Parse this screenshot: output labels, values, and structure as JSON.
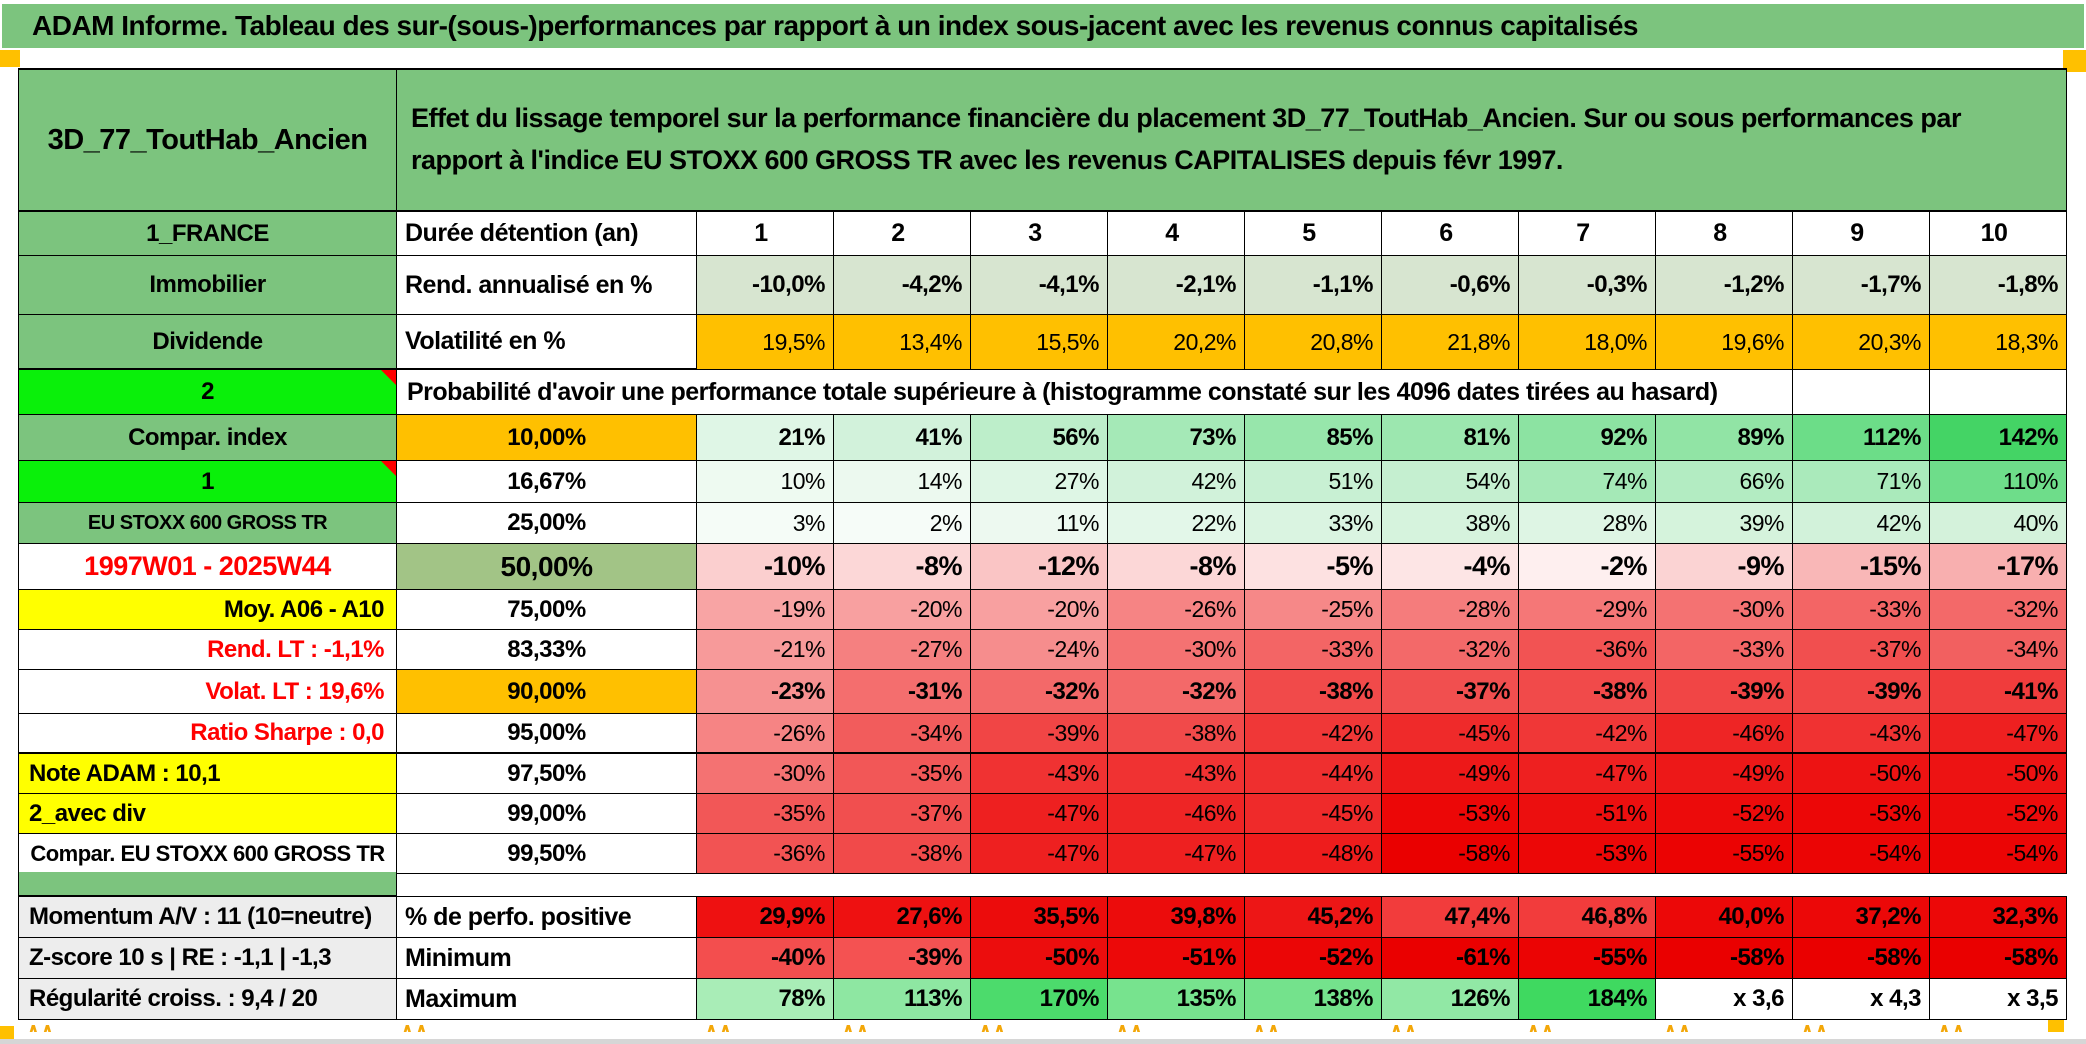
{
  "title": "ADAM Informe. Tableau des sur-(sous-)performances par rapport à un index sous-jacent avec les revenus connus capitalisés",
  "header": {
    "name": "3D_77_ToutHab_Ancien",
    "description": "Effet du lissage temporel sur la performance financière du placement 3D_77_ToutHab_Ancien. Sur ou sous performances par rapport à l'indice EU STOXX 600 GROSS TR avec les revenus CAPITALISES depuis févr 1997."
  },
  "colors": {
    "green_header": "#7cc47e",
    "bright_green": "#0af00a",
    "orange": "#ffc000",
    "yellow": "#ffff00",
    "sage": "#a2c486",
    "grey_label": "#ededed",
    "red_text": "#ff0000"
  },
  "duration_row": {
    "label_a": "1_FRANCE",
    "label_b": "Durée détention (an)",
    "values": [
      "1",
      "2",
      "3",
      "4",
      "5",
      "6",
      "7",
      "8",
      "9",
      "10"
    ]
  },
  "rend_row": {
    "label_a": "Immobilier",
    "label_b": "Rend. annualisé en %",
    "values": [
      "-10,0%",
      "-4,2%",
      "-4,1%",
      "-2,1%",
      "-1,1%",
      "-0,6%",
      "-0,3%",
      "-1,2%",
      "-1,7%",
      "-1,8%"
    ],
    "cell_colors": [
      "#d7e5d0",
      "#d7e5d0",
      "#d7e5d0",
      "#d7e5d0",
      "#d7e5d0",
      "#d7e5d0",
      "#d7e5d0",
      "#d7e5d0",
      "#d7e5d0",
      "#d7e5d0"
    ]
  },
  "volat_row": {
    "label_a": "Dividende",
    "label_b": "Volatilité en %",
    "values": [
      "19,5%",
      "13,4%",
      "15,5%",
      "20,2%",
      "20,8%",
      "21,8%",
      "18,0%",
      "19,6%",
      "20,3%",
      "18,3%"
    ],
    "cell_colors": [
      "#ffc000",
      "#ffc000",
      "#ffc000",
      "#ffc000",
      "#ffc000",
      "#ffc000",
      "#ffc000",
      "#ffc000",
      "#ffc000",
      "#ffc000"
    ]
  },
  "prob_header": {
    "label_a": "2",
    "text": "Probabilité d'avoir une performance totale supérieure à (histogramme constaté sur les 4096 dates tirées au hasard)"
  },
  "prob_rows": [
    {
      "label_a": "Compar. index",
      "pct": "10,00%",
      "values": [
        "21%",
        "41%",
        "56%",
        "73%",
        "85%",
        "81%",
        "92%",
        "89%",
        "112%",
        "142%"
      ],
      "cell_colors": [
        "#dff6e6",
        "#d2f2db",
        "#bdeeca",
        "#a5e9b7",
        "#97e6ab",
        "#9ce7af",
        "#8ce3a2",
        "#91e4a5",
        "#6cdd88",
        "#44d465"
      ]
    },
    {
      "label_a": "1",
      "pct": "16,67%",
      "values": [
        "10%",
        "14%",
        "27%",
        "42%",
        "51%",
        "54%",
        "74%",
        "66%",
        "71%",
        "110%"
      ],
      "cell_colors": [
        "#eefaf1",
        "#ecf9ef",
        "#def6e5",
        "#d1f2da",
        "#c8f0d3",
        "#c5efd0",
        "#a5e9b7",
        "#b3ecc2",
        "#aaeabb",
        "#6edd8a"
      ]
    },
    {
      "label_a": "EU STOXX 600 GROSS TR",
      "pct": "25,00%",
      "values": [
        "3%",
        "2%",
        "11%",
        "22%",
        "33%",
        "38%",
        "28%",
        "39%",
        "42%",
        "40%"
      ],
      "cell_colors": [
        "#f5fcf7",
        "#f6fcf8",
        "#edf9f0",
        "#e3f7e9",
        "#daf4e1",
        "#d6f3dd",
        "#def5e4",
        "#d5f3dc",
        "#d2f2da",
        "#d4f2db"
      ]
    },
    {
      "label_a": "1997W01 - 2025W44",
      "pct": "50,00%",
      "values": [
        "-10%",
        "-8%",
        "-12%",
        "-8%",
        "-5%",
        "-4%",
        "-2%",
        "-9%",
        "-15%",
        "-17%"
      ],
      "cell_colors": [
        "#fbcfcf",
        "#fcd7d7",
        "#fac5c5",
        "#fcd7d7",
        "#fde1e1",
        "#fde5e5",
        "#feefef",
        "#fbd3d3",
        "#f9b7b7",
        "#f8afaf"
      ]
    },
    {
      "label_a": "Moy. A06 - A10",
      "pct": "75,00%",
      "values": [
        "-19%",
        "-20%",
        "-20%",
        "-26%",
        "-25%",
        "-28%",
        "-29%",
        "-30%",
        "-33%",
        "-32%"
      ],
      "cell_colors": [
        "#f8a4a4",
        "#f8a0a0",
        "#f8a0a0",
        "#f68484",
        "#f68888",
        "#f57c7c",
        "#f57777",
        "#f47272",
        "#f36565",
        "#f36969"
      ]
    },
    {
      "label_a": "Rend. LT :   -1,1%",
      "pct": "83,33%",
      "values": [
        "-21%",
        "-27%",
        "-24%",
        "-30%",
        "-33%",
        "-32%",
        "-36%",
        "-33%",
        "-37%",
        "-34%"
      ],
      "cell_colors": [
        "#f79a9a",
        "#f58080",
        "#f68d8d",
        "#f47272",
        "#f36565",
        "#f36969",
        "#f25353",
        "#f36565",
        "#f14f4f",
        "#f26060"
      ]
    },
    {
      "label_a": "Volat. LT :   19,6%",
      "pct": "90,00%",
      "values": [
        "-23%",
        "-31%",
        "-32%",
        "-32%",
        "-38%",
        "-37%",
        "-38%",
        "-39%",
        "-39%",
        "-41%"
      ],
      "cell_colors": [
        "#f69191",
        "#f46e6e",
        "#f36969",
        "#f36969",
        "#f14a4a",
        "#f14f4f",
        "#f14a4a",
        "#f14545",
        "#f14545",
        "#f03c3c"
      ]
    },
    {
      "label_a": "Ratio Sharpe :   0,0",
      "pct": "95,00%",
      "values": [
        "-26%",
        "-34%",
        "-39%",
        "-38%",
        "-42%",
        "-45%",
        "-42%",
        "-46%",
        "-43%",
        "-47%"
      ],
      "cell_colors": [
        "#f68484",
        "#f25c5c",
        "#f14545",
        "#f14a4a",
        "#f03737",
        "#ef2a2a",
        "#f03737",
        "#ee2525",
        "#f03232",
        "#ee2020"
      ]
    },
    {
      "label_a": "Note ADAM : 10,1",
      "pct": "97,50%",
      "values": [
        "-30%",
        "-35%",
        "-43%",
        "-43%",
        "-44%",
        "-49%",
        "-47%",
        "-49%",
        "-50%",
        "-50%"
      ],
      "cell_colors": [
        "#f47272",
        "#f25757",
        "#f03232",
        "#f03232",
        "#ef2f2f",
        "#ed1818",
        "#ee2020",
        "#ed1818",
        "#ed1313",
        "#ed1313"
      ]
    },
    {
      "label_a": "2_avec div",
      "pct": "99,00%",
      "values": [
        "-35%",
        "-37%",
        "-47%",
        "-46%",
        "-45%",
        "-53%",
        "-51%",
        "-52%",
        "-53%",
        "-52%"
      ],
      "cell_colors": [
        "#f25757",
        "#f14f4f",
        "#ee2020",
        "#ee2525",
        "#ef2a2a",
        "#ec0707",
        "#ec0f0f",
        "#ec0b0b",
        "#ec0707",
        "#ec0b0b"
      ]
    },
    {
      "label_a": "Compar. EU STOXX 600 GROSS TR",
      "pct": "99,50%",
      "values": [
        "-36%",
        "-38%",
        "-47%",
        "-47%",
        "-48%",
        "-58%",
        "-53%",
        "-55%",
        "-54%",
        "-54%"
      ],
      "cell_colors": [
        "#f25353",
        "#f14a4a",
        "#ee2020",
        "#ee2020",
        "#ee1c1c",
        "#ea0000",
        "#ec0707",
        "#eb0303",
        "#eb0505",
        "#eb0505"
      ]
    }
  ],
  "bottom_rows": [
    {
      "label_a": "Momentum A/V : 11 (10=neutre)",
      "label_b": "% de perfo. positive",
      "values": [
        "29,9%",
        "27,6%",
        "35,5%",
        "39,8%",
        "45,2%",
        "47,4%",
        "46,8%",
        "40,0%",
        "37,2%",
        "32,3%"
      ],
      "cell_colors": [
        "#ee1111",
        "#ee1111",
        "#ec0c0c",
        "#ec0c0c",
        "#ed1616",
        "#f23c3c",
        "#f23c3c",
        "#ec0808",
        "#ec0808",
        "#ec0808"
      ]
    },
    {
      "label_a": "Z-score 10 s | RE : -1,1 | -1,3",
      "label_b": "Minimum",
      "values": [
        "-40%",
        "-39%",
        "-50%",
        "-51%",
        "-52%",
        "-61%",
        "-55%",
        "-58%",
        "-58%",
        "-58%"
      ],
      "cell_colors": [
        "#f34e4e",
        "#f45252",
        "#ec0d0d",
        "#ec0909",
        "#eb0606",
        "#ea0000",
        "#eb0404",
        "#ea0000",
        "#ea0000",
        "#ea0000"
      ]
    },
    {
      "label_a": "Régularité croiss. : 9,4 / 20",
      "label_b": "Maximum",
      "values": [
        "78%",
        "113%",
        "170%",
        "135%",
        "138%",
        "126%",
        "184%",
        "x 3,6",
        "x 4,3",
        "x 3,5"
      ],
      "cell_colors": [
        "#a9edb7",
        "#8ee7a2",
        "#4cdb6c",
        "#77e38e",
        "#74e28c",
        "#91e8a5",
        "#3fd960",
        "#ffffff",
        "#ffffff",
        "#ffffff"
      ]
    }
  ],
  "decor": {
    "caret_marks": "∧∧"
  }
}
